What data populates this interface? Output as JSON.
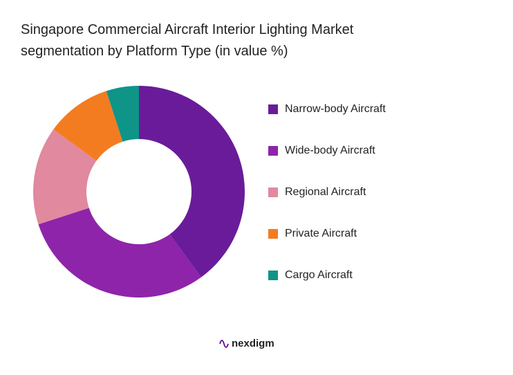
{
  "chart_data": {
    "type": "donut",
    "title": "Singapore Commercial Aircraft Interior Lighting Market segmentation by Platform Type (in value %)",
    "categories": [
      "Narrow-body Aircraft",
      "Wide-body Aircraft",
      "Regional Aircraft",
      "Private Aircraft",
      "Cargo Aircraft"
    ],
    "values": [
      40,
      30,
      15,
      10,
      5
    ],
    "colors": [
      "#6a1b9a",
      "#8e24aa",
      "#e0899f",
      "#f47c20",
      "#0f9488"
    ],
    "legend": "right"
  },
  "brand": "nexdigm"
}
